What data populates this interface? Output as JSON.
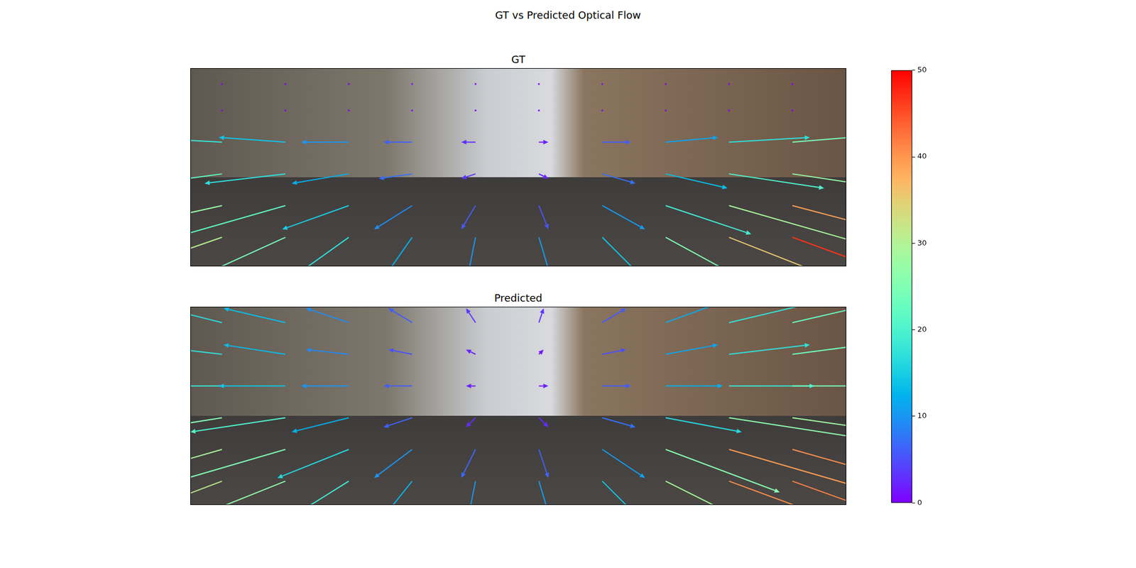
{
  "chart_data": {
    "type": "quiver",
    "title": "GT vs Predicted Optical Flow",
    "tick_labels": false,
    "colorbar": {
      "range": [
        0,
        50
      ],
      "ticks": [
        0,
        10,
        20,
        30,
        40,
        50
      ]
    },
    "panels": [
      {
        "title": "GT",
        "xlim": [
          0,
          1242
        ],
        "ylim": [
          375,
          0
        ],
        "arrows": [
          [
            60,
            30,
            0,
            0
          ],
          [
            180,
            30,
            0,
            0
          ],
          [
            300,
            30,
            0,
            0
          ],
          [
            420,
            30,
            0,
            0
          ],
          [
            540,
            30,
            0,
            0
          ],
          [
            660,
            30,
            0,
            0
          ],
          [
            780,
            30,
            0,
            0
          ],
          [
            900,
            30,
            0,
            0
          ],
          [
            1020,
            30,
            0,
            0
          ],
          [
            1140,
            30,
            0,
            0
          ],
          [
            60,
            80,
            0,
            0
          ],
          [
            180,
            80,
            0,
            0
          ],
          [
            300,
            80,
            0,
            0
          ],
          [
            420,
            80,
            0,
            0
          ],
          [
            540,
            80,
            0,
            0
          ],
          [
            660,
            80,
            0,
            0
          ],
          [
            780,
            80,
            0,
            0
          ],
          [
            900,
            80,
            0,
            0
          ],
          [
            1020,
            80,
            0,
            0
          ],
          [
            1140,
            80,
            0,
            0
          ],
          [
            60,
            140,
            -18,
            -1
          ],
          [
            180,
            140,
            -14,
            -1
          ],
          [
            300,
            140,
            -10,
            0
          ],
          [
            420,
            140,
            -6,
            0
          ],
          [
            540,
            140,
            -3,
            0
          ],
          [
            660,
            140,
            2,
            0
          ],
          [
            780,
            140,
            6,
            0
          ],
          [
            900,
            140,
            11,
            -1
          ],
          [
            1020,
            140,
            17,
            -1
          ],
          [
            1140,
            140,
            24,
            -2
          ],
          [
            60,
            200,
            -22,
            3
          ],
          [
            180,
            200,
            -17,
            2
          ],
          [
            300,
            200,
            -12,
            2
          ],
          [
            420,
            200,
            -7,
            1
          ],
          [
            540,
            200,
            -3,
            1
          ],
          [
            660,
            200,
            2,
            1
          ],
          [
            780,
            200,
            7,
            2
          ],
          [
            900,
            200,
            13,
            3
          ],
          [
            1020,
            200,
            20,
            3
          ],
          [
            1140,
            200,
            27,
            4
          ],
          [
            60,
            260,
            -27,
            6
          ],
          [
            180,
            260,
            -21,
            6
          ],
          [
            300,
            260,
            -14,
            5
          ],
          [
            420,
            260,
            -8,
            5
          ],
          [
            540,
            260,
            -3,
            5
          ],
          [
            660,
            260,
            2,
            5
          ],
          [
            780,
            260,
            9,
            5
          ],
          [
            900,
            260,
            18,
            6
          ],
          [
            1020,
            260,
            28,
            8
          ],
          [
            1140,
            260,
            38,
            10
          ],
          [
            60,
            320,
            -29,
            10
          ],
          [
            180,
            320,
            -22,
            10
          ],
          [
            300,
            320,
            -14,
            10
          ],
          [
            420,
            320,
            -7,
            10
          ],
          [
            540,
            320,
            -2,
            10
          ],
          [
            660,
            320,
            3,
            10
          ],
          [
            780,
            320,
            10,
            10
          ],
          [
            900,
            320,
            22,
            12
          ],
          [
            1020,
            320,
            33,
            13
          ],
          [
            1140,
            320,
            44,
            16
          ]
        ]
      },
      {
        "title": "Predicted",
        "xlim": [
          0,
          1242
        ],
        "ylim": [
          375,
          0
        ],
        "arrows": [
          [
            60,
            30,
            -16,
            -4
          ],
          [
            180,
            30,
            -13,
            -3
          ],
          [
            300,
            30,
            -9,
            -3
          ],
          [
            420,
            30,
            -5,
            -3
          ],
          [
            540,
            30,
            -2,
            -3
          ],
          [
            660,
            30,
            1,
            -3
          ],
          [
            780,
            30,
            5,
            -3
          ],
          [
            900,
            30,
            11,
            -4
          ],
          [
            1020,
            30,
            17,
            -4
          ],
          [
            1140,
            30,
            22,
            -5
          ],
          [
            60,
            90,
            -17,
            -2
          ],
          [
            180,
            90,
            -13,
            -2
          ],
          [
            300,
            90,
            -9,
            -1
          ],
          [
            420,
            90,
            -5,
            -1
          ],
          [
            540,
            90,
            -2,
            -1
          ],
          [
            660,
            90,
            1,
            -1
          ],
          [
            780,
            90,
            5,
            -1
          ],
          [
            900,
            90,
            11,
            -2
          ],
          [
            1020,
            90,
            17,
            -2
          ],
          [
            1140,
            90,
            23,
            -3
          ],
          [
            60,
            150,
            -18,
            0
          ],
          [
            180,
            150,
            -14,
            0
          ],
          [
            300,
            150,
            -10,
            0
          ],
          [
            420,
            150,
            -6,
            0
          ],
          [
            540,
            150,
            -2,
            0
          ],
          [
            660,
            150,
            2,
            0
          ],
          [
            780,
            150,
            6,
            0
          ],
          [
            900,
            150,
            12,
            0
          ],
          [
            1020,
            150,
            18,
            0
          ],
          [
            1140,
            150,
            24,
            0
          ],
          [
            60,
            210,
            -25,
            4
          ],
          [
            180,
            210,
            -20,
            3
          ],
          [
            300,
            210,
            -12,
            3
          ],
          [
            420,
            210,
            -6,
            2
          ],
          [
            540,
            210,
            -2,
            2
          ],
          [
            660,
            210,
            2,
            2
          ],
          [
            780,
            210,
            7,
            2
          ],
          [
            900,
            210,
            16,
            3
          ],
          [
            1020,
            210,
            26,
            4
          ],
          [
            1140,
            210,
            28,
            4
          ],
          [
            60,
            270,
            -28,
            8
          ],
          [
            180,
            270,
            -24,
            7
          ],
          [
            300,
            270,
            -15,
            6
          ],
          [
            420,
            270,
            -8,
            6
          ],
          [
            540,
            270,
            -3,
            6
          ],
          [
            660,
            270,
            2,
            6
          ],
          [
            780,
            270,
            9,
            6
          ],
          [
            900,
            270,
            24,
            9
          ],
          [
            1020,
            270,
            38,
            11
          ],
          [
            1140,
            270,
            39,
            11
          ],
          [
            60,
            330,
            -29,
            11
          ],
          [
            180,
            330,
            -25,
            10
          ],
          [
            300,
            330,
            -16,
            10
          ],
          [
            420,
            330,
            -8,
            10
          ],
          [
            540,
            330,
            -2,
            10
          ],
          [
            660,
            330,
            3,
            10
          ],
          [
            780,
            330,
            10,
            10
          ],
          [
            900,
            330,
            26,
            13
          ],
          [
            1020,
            330,
            38,
            14
          ],
          [
            1140,
            330,
            39,
            14
          ]
        ]
      }
    ]
  }
}
